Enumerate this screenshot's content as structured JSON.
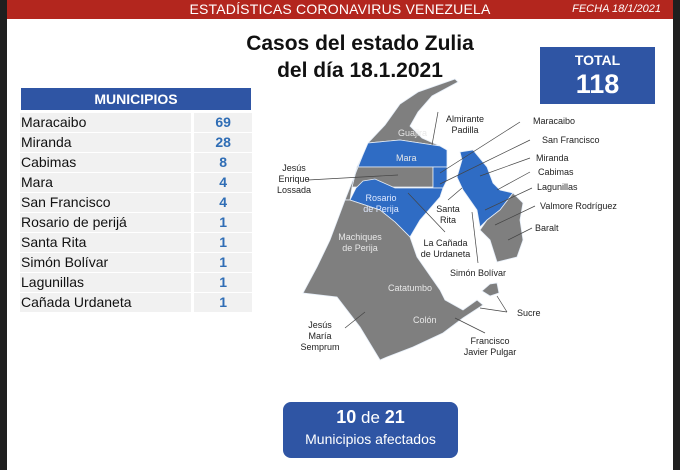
{
  "header": {
    "title": "ESTADÍSTICAS CORONAVIRUS VENEZUELA",
    "date": "FECHA 18/1/2021"
  },
  "title": {
    "line1": "Casos del estado Zulia",
    "line2": "del día 18.1.2021"
  },
  "total": {
    "label": "TOTAL",
    "value": "118"
  },
  "municipios": {
    "header": "MUNICIPIOS",
    "rows": [
      {
        "name": "Maracaibo",
        "count": "69"
      },
      {
        "name": "Miranda",
        "count": "28"
      },
      {
        "name": "Cabimas",
        "count": "8"
      },
      {
        "name": "Mara",
        "count": "4"
      },
      {
        "name": "San Francisco",
        "count": "4"
      },
      {
        "name": "Rosario de perijá",
        "count": "1"
      },
      {
        "name": "Santa Rita",
        "count": "1"
      },
      {
        "name": "Simón Bolívar",
        "count": "1"
      },
      {
        "name": "Lagunillas",
        "count": "1"
      },
      {
        "name": "Cañada Urdaneta",
        "count": "1"
      }
    ]
  },
  "map": {
    "colors": {
      "affected": "#2f6cc4",
      "unaffected": "#7f7f7f"
    },
    "labels": {
      "guajira": "Guajira",
      "mara": "Mara",
      "rosario": "Rosario de Perija",
      "machiques": "Machiques de Perija",
      "catatumbo": "Catatumbo",
      "colon": "Colón",
      "almirante_padilla": "Almirante Padilla",
      "maracaibo": "Maracaibo",
      "san_francisco": "San Francisco",
      "miranda": "Miranda",
      "cabimas": "Cabimas",
      "lagunillas": "Lagunillas",
      "valmore": "Valmore Rodríguez",
      "baralt": "Baralt",
      "santa_rita": "Santa Rita",
      "canada": "La Cañada de Urdaneta",
      "simon_bolivar": "Simón Bolívar",
      "sucre": "Sucre",
      "francisco_javier_pulgar": "Francisco Javier Pulgar",
      "jesus_enrique_lossada": "Jesús Enrique Lossada",
      "jesus_maria_semprum": "Jesús María Semprum"
    }
  },
  "affected": {
    "count": "10",
    "of": "de",
    "total": "21",
    "label": "Municipios afectados"
  }
}
